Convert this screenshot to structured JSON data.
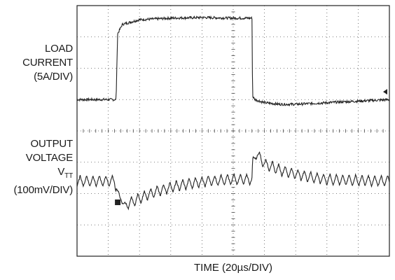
{
  "chart_data": {
    "type": "line",
    "title": "",
    "xlabel": "TIME (20µs/DIV)",
    "x_divisions": 10,
    "y_divisions": 8,
    "grid": true,
    "grid_style": "dotted",
    "trace_color": "#222222",
    "channels": [
      {
        "label_lines": [
          "LOAD",
          "CURRENT",
          "(5A/DIV)"
        ],
        "scale": "5A/DIV",
        "x_div": [
          0,
          1.25,
          1.3,
          1.45,
          2.0,
          3.0,
          4.0,
          5.0,
          5.6,
          5.62,
          5.7,
          6.0,
          6.5,
          7.0,
          8.0,
          9.0,
          10.0
        ],
        "y_div": [
          5.0,
          5.0,
          7.1,
          7.4,
          7.55,
          7.6,
          7.62,
          7.6,
          7.6,
          5.1,
          5.0,
          4.9,
          4.85,
          4.85,
          4.9,
          4.95,
          5.0
        ],
        "ripple_div": 0.08
      },
      {
        "label_lines": [
          "OUTPUT",
          "VOLTAGE",
          "V_TT",
          "(100mV/DIV)"
        ],
        "scale": "100mV/DIV",
        "x_div": [
          0,
          1.2,
          1.25,
          1.45,
          1.6,
          2.0,
          2.5,
          3.0,
          3.5,
          4.0,
          4.5,
          5.0,
          5.6,
          5.62,
          5.75,
          6.0,
          6.5,
          7.0,
          7.5,
          8.0,
          9.0,
          10.0
        ],
        "y_div": [
          2.4,
          2.4,
          2.2,
          1.7,
          1.65,
          1.85,
          2.05,
          2.2,
          2.3,
          2.38,
          2.42,
          2.45,
          2.45,
          2.95,
          3.3,
          2.95,
          2.75,
          2.62,
          2.52,
          2.45,
          2.42,
          2.4
        ],
        "ripple_div": 0.35
      }
    ],
    "markers": [
      {
        "type": "level-arrow",
        "channel": 0,
        "y_div": 5.25
      }
    ]
  }
}
